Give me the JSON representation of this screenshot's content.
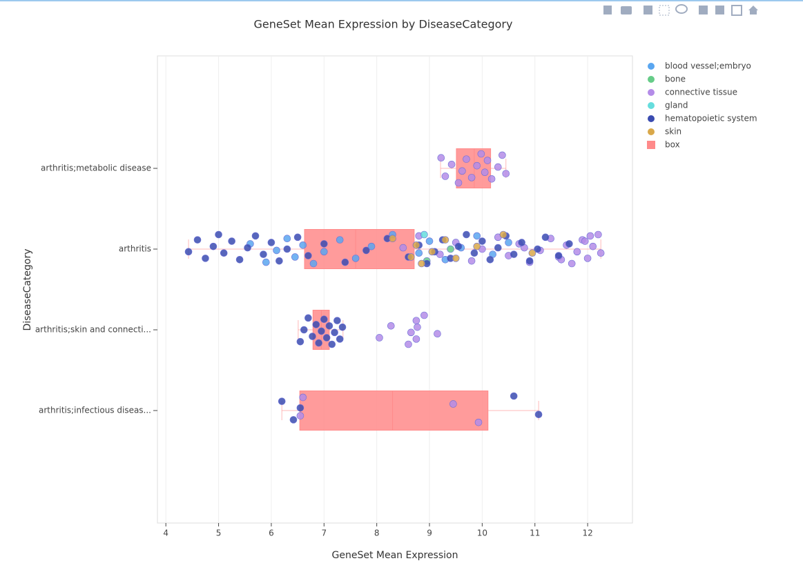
{
  "chart_data": {
    "type": "box",
    "title": "GeneSet Mean Expression by DiseaseCategory",
    "x_label": "GeneSet Mean Expression",
    "y_label": "DiseaseCategory",
    "categories": [
      "arthritis;metabolic disease",
      "arthritis",
      "arthritis;skin and connecti...",
      "arthritis;infectious diseas..."
    ],
    "xlim": [
      3.84,
      12.85
    ],
    "xticks": [
      4,
      5,
      6,
      7,
      8,
      9,
      10,
      11,
      12
    ],
    "grid": true,
    "series": [
      {
        "name": "blood vessel;embryo",
        "color": "#5aa6f0",
        "values": [
          [],
          [
            5.6,
            5.9,
            6.1,
            6.3,
            6.45,
            6.6,
            6.8,
            7.0,
            7.3,
            7.6,
            7.9,
            8.3,
            8.8,
            9.0,
            9.3,
            9.6,
            9.9,
            10.2,
            10.5
          ],
          [],
          []
        ]
      },
      {
        "name": "bone",
        "color": "#66cc88",
        "values": [
          [],
          [
            8.95,
            9.4
          ],
          [],
          []
        ]
      },
      {
        "name": "connective tissue",
        "color": "#b48ce8",
        "values": [
          [
            9.22,
            9.3,
            9.42,
            9.55,
            9.62,
            9.7,
            9.8,
            9.9,
            9.98,
            10.05,
            10.1,
            10.18,
            10.3,
            10.38,
            10.45
          ],
          [
            8.5,
            8.8,
            9.2,
            9.5,
            9.8,
            10.0,
            10.3,
            10.5,
            10.7,
            10.9,
            11.1,
            11.3,
            11.45,
            11.6,
            11.7,
            11.8,
            11.9,
            12.0,
            12.1,
            12.2,
            12.25,
            11.95,
            11.5,
            10.8,
            12.05
          ],
          [
            8.05,
            8.27,
            8.6,
            8.65,
            8.75,
            8.75,
            8.77,
            8.9,
            9.15
          ],
          [
            6.6,
            6.55,
            9.45,
            9.93
          ]
        ]
      },
      {
        "name": "gland",
        "color": "#66dddd",
        "values": [
          [],
          [
            8.9
          ],
          [],
          []
        ]
      },
      {
        "name": "hematopoietic system",
        "color": "#3a4bb0",
        "values": [
          [],
          [
            4.43,
            4.6,
            4.75,
            4.9,
            5.0,
            5.1,
            5.25,
            5.4,
            5.55,
            5.7,
            5.85,
            6.0,
            6.15,
            6.3,
            6.5,
            6.7,
            7.0,
            7.4,
            7.8,
            8.2,
            8.6,
            8.8,
            8.95,
            9.1,
            9.25,
            9.4,
            9.55,
            9.7,
            9.85,
            10.0,
            10.15,
            10.3,
            10.45,
            10.6,
            10.75,
            10.9,
            11.05,
            11.2,
            11.45,
            11.65
          ],
          [
            6.55,
            6.62,
            6.7,
            6.78,
            6.85,
            6.9,
            6.95,
            7.0,
            7.05,
            7.1,
            7.15,
            7.2,
            7.25,
            7.3,
            7.35
          ],
          [
            6.2,
            6.42,
            6.55,
            10.6,
            11.07
          ]
        ]
      },
      {
        "name": "skin",
        "color": "#d9a84a",
        "values": [
          [],
          [
            8.3,
            8.65,
            8.75,
            8.85,
            9.05,
            9.3,
            9.5,
            9.9,
            10.4,
            10.95
          ],
          [],
          []
        ]
      }
    ],
    "box": {
      "name": "box",
      "color": "#ff8a8a",
      "stats": [
        {
          "min": 9.21,
          "q1": 9.51,
          "median": 9.85,
          "q3": 10.16,
          "max": 10.45
        },
        {
          "min": 4.43,
          "q1": 6.63,
          "median": 7.6,
          "q3": 8.71,
          "max": 12.25
        },
        {
          "min": 6.51,
          "q1": 6.79,
          "median": 6.95,
          "q3": 7.1,
          "max": 7.36
        },
        {
          "min": 6.2,
          "q1": 6.54,
          "median": 8.3,
          "q3": 10.11,
          "max": 11.07
        }
      ]
    }
  }
}
